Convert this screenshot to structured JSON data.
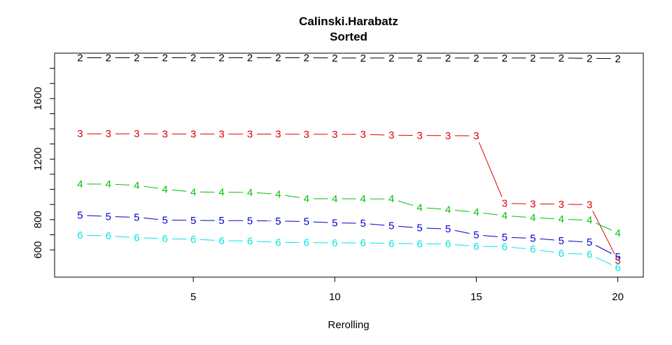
{
  "chart_data": {
    "type": "line",
    "title": "Calinski.Harabatz",
    "subtitle": "Sorted",
    "xlabel": "Rerolling",
    "ylabel": "",
    "xlim": [
      0.1,
      20.9
    ],
    "ylim": [
      420,
      1900
    ],
    "xticks": [
      5,
      10,
      15,
      20
    ],
    "yticks": [
      600,
      800,
      1200,
      1600
    ],
    "grid": false,
    "x": [
      1,
      2,
      3,
      4,
      5,
      6,
      7,
      8,
      9,
      10,
      11,
      12,
      13,
      14,
      15,
      16,
      17,
      18,
      19,
      20
    ],
    "series": [
      {
        "marker": "2",
        "color": "#000000",
        "values": [
          1870,
          1870,
          1870,
          1870,
          1870,
          1870,
          1870,
          1870,
          1870,
          1868,
          1868,
          1868,
          1868,
          1868,
          1868,
          1868,
          1868,
          1868,
          1866,
          1864
        ]
      },
      {
        "marker": "3",
        "color": "#DF0000",
        "values": [
          1367,
          1367,
          1367,
          1366,
          1366,
          1365,
          1365,
          1365,
          1364,
          1364,
          1363,
          1358,
          1356,
          1355,
          1354,
          907,
          904,
          902,
          899,
          531
        ]
      },
      {
        "marker": "4",
        "color": "#00C000",
        "values": [
          1035,
          1035,
          1027,
          1000,
          983,
          981,
          980,
          968,
          938,
          938,
          937,
          937,
          881,
          866,
          849,
          826,
          813,
          803,
          796,
          712
        ]
      },
      {
        "marker": "5",
        "color": "#0000CC",
        "values": [
          829,
          821,
          815,
          797,
          795,
          794,
          793,
          791,
          787,
          779,
          775,
          759,
          746,
          738,
          699,
          683,
          677,
          661,
          651,
          555
        ]
      },
      {
        "marker": "6",
        "color": "#00E6E6",
        "values": [
          697,
          692,
          681,
          674,
          670,
          661,
          658,
          650,
          648,
          647,
          646,
          643,
          640,
          639,
          623,
          621,
          604,
          578,
          571,
          482
        ]
      }
    ]
  }
}
